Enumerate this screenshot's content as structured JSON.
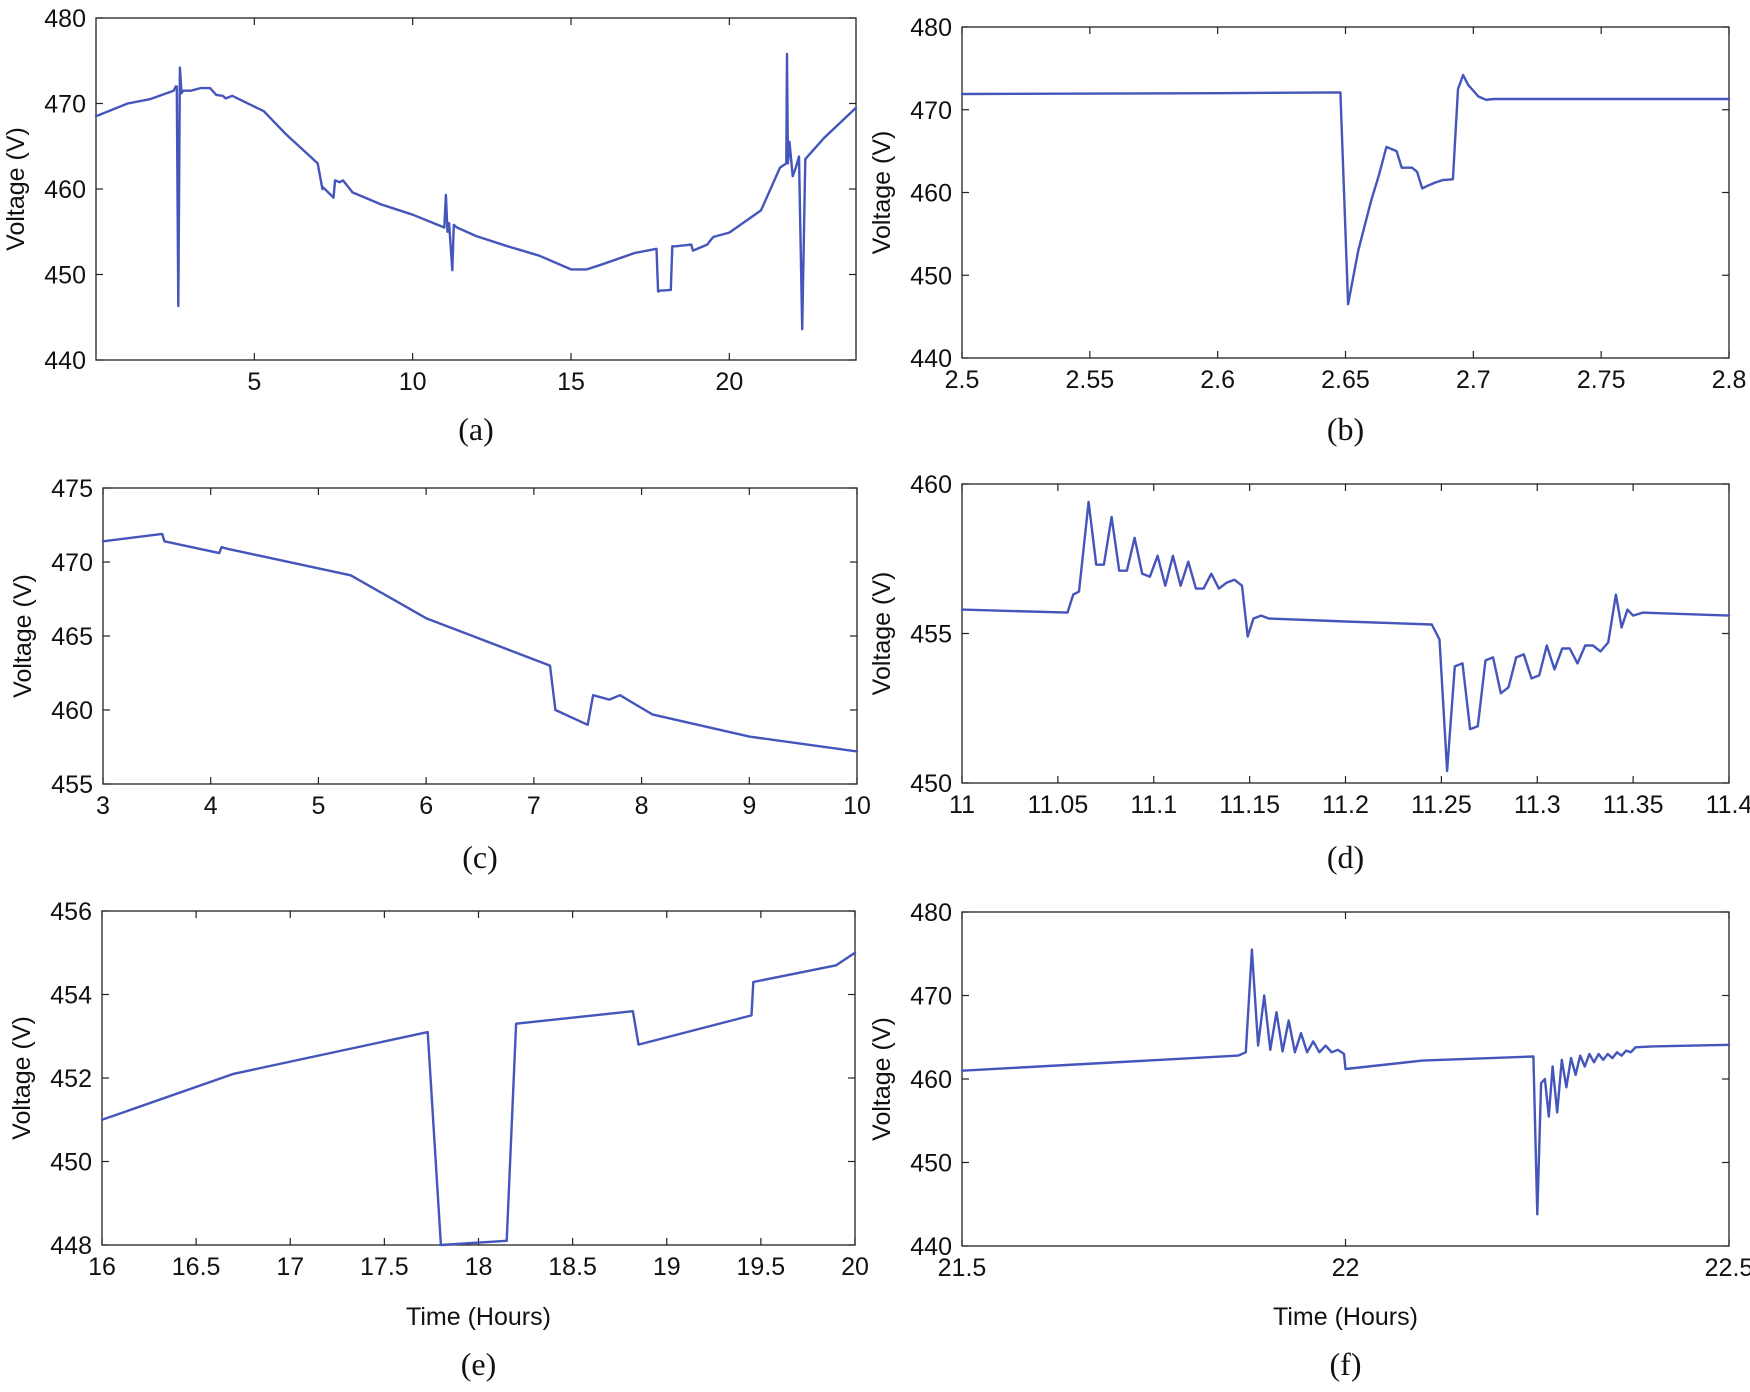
{
  "line_color": "#4455bb",
  "chart_data": [
    {
      "id": "a",
      "type": "line",
      "panel_label": "(a)",
      "xlabel": "",
      "ylabel": "Voltage (V)",
      "xlim": [
        0,
        24
      ],
      "ylim": [
        440,
        480
      ],
      "xticks": [
        5,
        10,
        15,
        20
      ],
      "xtick_labels": [
        "5",
        "10",
        "15",
        "20"
      ],
      "yticks": [
        440,
        450,
        460,
        470,
        480
      ],
      "ytick_labels": [
        "440",
        "450",
        "460",
        "470",
        "480"
      ],
      "series": [
        {
          "name": "Voltage",
          "x": [
            0,
            1,
            1.7,
            2.45,
            2.52,
            2.55,
            2.6,
            2.65,
            2.7,
            2.75,
            2.8,
            3,
            3.3,
            3.6,
            3.8,
            4,
            4.1,
            4.3,
            5.3,
            6,
            7,
            7.15,
            7.17,
            7.5,
            7.55,
            7.7,
            7.8,
            8.1,
            9,
            10,
            11,
            11.05,
            11.1,
            11.15,
            11.25,
            11.3,
            11.4,
            12,
            13,
            14,
            15,
            15.5,
            16,
            17,
            17.7,
            17.75,
            17.8,
            18.15,
            18.2,
            18.3,
            18.8,
            18.85,
            19.3,
            19.45,
            19.5,
            20,
            21,
            21.6,
            21.8,
            21.82,
            21.85,
            21.9,
            22,
            22.1,
            22.2,
            22.3,
            22.4,
            23,
            24
          ],
          "y": [
            468.5,
            470,
            470.5,
            471.5,
            472,
            472,
            446.3,
            474.2,
            471.2,
            471.5,
            471.5,
            471.5,
            471.8,
            471.8,
            471,
            470.9,
            470.6,
            470.9,
            469.1,
            466.4,
            463,
            460,
            460.2,
            459,
            461,
            460.8,
            461,
            459.6,
            458.2,
            457,
            455.5,
            459.3,
            455,
            456,
            450.5,
            455.8,
            455.5,
            454.5,
            453.3,
            452.2,
            450.6,
            450.6,
            451.2,
            452.5,
            453,
            448,
            448.1,
            448.2,
            453.3,
            453.3,
            453.5,
            452.8,
            453.5,
            454.2,
            454.4,
            454.9,
            457.5,
            462.5,
            463,
            475.8,
            463,
            465.5,
            461.5,
            462.5,
            463.8,
            443.6,
            463.5,
            466,
            469.5
          ]
        }
      ]
    },
    {
      "id": "b",
      "type": "line",
      "panel_label": "(b)",
      "xlabel": "",
      "ylabel": "Voltage (V)",
      "xlim": [
        2.5,
        2.8
      ],
      "ylim": [
        440,
        480
      ],
      "xticks": [
        2.5,
        2.55,
        2.6,
        2.65,
        2.7,
        2.75,
        2.8
      ],
      "xtick_labels": [
        "2.5",
        "2.55",
        "2.6",
        "2.65",
        "2.7",
        "2.75",
        "2.8"
      ],
      "yticks": [
        440,
        450,
        460,
        470,
        480
      ],
      "ytick_labels": [
        "440",
        "450",
        "460",
        "470",
        "480"
      ],
      "series": [
        {
          "name": "Voltage",
          "x": [
            2.5,
            2.6,
            2.648,
            2.651,
            2.655,
            2.66,
            2.663,
            2.666,
            2.67,
            2.672,
            2.676,
            2.678,
            2.68,
            2.682,
            2.685,
            2.688,
            2.692,
            2.694,
            2.696,
            2.698,
            2.702,
            2.705,
            2.708,
            2.75,
            2.8
          ],
          "y": [
            471.9,
            472,
            472.1,
            446.5,
            453,
            459,
            462,
            465.5,
            465,
            463,
            463,
            462.5,
            460.5,
            460.8,
            461.2,
            461.5,
            461.6,
            472.5,
            474.2,
            473,
            471.6,
            471.2,
            471.3,
            471.3,
            471.3
          ]
        }
      ]
    },
    {
      "id": "c",
      "type": "line",
      "panel_label": "(c)",
      "xlabel": "",
      "ylabel": "Voltage (V)",
      "xlim": [
        3,
        10
      ],
      "ylim": [
        455,
        475
      ],
      "xticks": [
        3,
        4,
        5,
        6,
        7,
        8,
        9,
        10
      ],
      "xtick_labels": [
        "3",
        "4",
        "5",
        "6",
        "7",
        "8",
        "9",
        "10"
      ],
      "yticks": [
        455,
        460,
        465,
        470,
        475
      ],
      "ytick_labels": [
        "455",
        "460",
        "465",
        "470",
        "475"
      ],
      "series": [
        {
          "name": "Voltage",
          "x": [
            3,
            3.55,
            3.57,
            4.08,
            4.1,
            4.15,
            5.3,
            6,
            7.15,
            7.2,
            7.5,
            7.55,
            7.7,
            7.8,
            8.1,
            9,
            10
          ],
          "y": [
            471.4,
            471.9,
            471.4,
            470.6,
            471,
            470.9,
            469.1,
            466.2,
            463,
            460,
            459,
            461,
            460.7,
            461,
            459.7,
            458.2,
            457.2
          ]
        }
      ]
    },
    {
      "id": "d",
      "type": "line",
      "panel_label": "(d)",
      "xlabel": "",
      "ylabel": "Voltage (V)",
      "xlim": [
        11,
        11.4
      ],
      "ylim": [
        450,
        460
      ],
      "xticks": [
        11,
        11.05,
        11.1,
        11.15,
        11.2,
        11.25,
        11.3,
        11.35,
        11.4
      ],
      "xtick_labels": [
        "11",
        "11.05",
        "11.1",
        "11.15",
        "11.2",
        "11.25",
        "11.3",
        "11.35",
        "11.4"
      ],
      "yticks": [
        450,
        455,
        460
      ],
      "ytick_labels": [
        "450",
        "455",
        "460"
      ],
      "series": [
        {
          "name": "Voltage",
          "x": [
            11,
            11.055,
            11.058,
            11.061,
            11.066,
            11.07,
            11.074,
            11.078,
            11.082,
            11.086,
            11.09,
            11.094,
            11.098,
            11.102,
            11.106,
            11.11,
            11.114,
            11.118,
            11.122,
            11.126,
            11.13,
            11.134,
            11.138,
            11.142,
            11.146,
            11.149,
            11.152,
            11.156,
            11.16,
            11.2,
            11.245,
            11.249,
            11.253,
            11.257,
            11.261,
            11.265,
            11.269,
            11.273,
            11.277,
            11.281,
            11.285,
            11.289,
            11.293,
            11.297,
            11.301,
            11.305,
            11.309,
            11.313,
            11.317,
            11.321,
            11.325,
            11.329,
            11.333,
            11.337,
            11.341,
            11.344,
            11.347,
            11.35,
            11.355,
            11.4
          ],
          "y": [
            455.8,
            455.7,
            456.3,
            456.4,
            459.4,
            457.3,
            457.3,
            458.9,
            457.1,
            457.1,
            458.2,
            457.0,
            456.9,
            457.6,
            456.6,
            457.6,
            456.6,
            457.4,
            456.5,
            456.5,
            457.0,
            456.5,
            456.7,
            456.8,
            456.6,
            454.9,
            455.5,
            455.6,
            455.5,
            455.4,
            455.3,
            454.8,
            450.4,
            453.9,
            454.0,
            451.8,
            451.9,
            454.1,
            454.2,
            453.0,
            453.2,
            454.2,
            454.3,
            453.5,
            453.6,
            454.6,
            453.8,
            454.5,
            454.5,
            454.0,
            454.6,
            454.6,
            454.4,
            454.7,
            456.3,
            455.2,
            455.8,
            455.6,
            455.7,
            455.6
          ]
        }
      ]
    },
    {
      "id": "e",
      "type": "line",
      "panel_label": "(e)",
      "xlabel": "Time (Hours)",
      "ylabel": "Voltage (V)",
      "xlim": [
        16,
        20
      ],
      "ylim": [
        448,
        456
      ],
      "xticks": [
        16,
        16.5,
        17,
        17.5,
        18,
        18.5,
        19,
        19.5,
        20
      ],
      "xtick_labels": [
        "16",
        "16.5",
        "17",
        "17.5",
        "18",
        "18.5",
        "19",
        "19.5",
        "20"
      ],
      "yticks": [
        448,
        450,
        452,
        454,
        456
      ],
      "ytick_labels": [
        "448",
        "450",
        "452",
        "454",
        "456"
      ],
      "series": [
        {
          "name": "Voltage",
          "x": [
            16,
            16.7,
            17.73,
            17.8,
            18.15,
            18.2,
            18.82,
            18.85,
            19.45,
            19.46,
            19.9,
            20
          ],
          "y": [
            451,
            452.1,
            453.1,
            448,
            448.1,
            453.3,
            453.6,
            452.8,
            453.5,
            454.3,
            454.7,
            455
          ]
        }
      ]
    },
    {
      "id": "f",
      "type": "line",
      "panel_label": "(f)",
      "xlabel": "Time (Hours)",
      "ylabel": "Voltage (V)",
      "xlim": [
        21.5,
        22.5
      ],
      "ylim": [
        440,
        480
      ],
      "xticks": [
        21.5,
        22,
        22.5
      ],
      "xtick_labels": [
        "21.5",
        "22",
        "22.5"
      ],
      "yticks": [
        440,
        450,
        460,
        470,
        480
      ],
      "ytick_labels": [
        "440",
        "450",
        "460",
        "470",
        "480"
      ],
      "series": [
        {
          "name": "Voltage",
          "x": [
            21.5,
            21.86,
            21.87,
            21.878,
            21.886,
            21.894,
            21.902,
            21.91,
            21.918,
            21.926,
            21.934,
            21.942,
            21.95,
            21.958,
            21.966,
            21.974,
            21.982,
            21.99,
            21.998,
            22.0,
            22.1,
            22.245,
            22.25,
            22.255,
            22.26,
            22.265,
            22.27,
            22.276,
            22.282,
            22.288,
            22.294,
            22.3,
            22.306,
            22.312,
            22.318,
            22.324,
            22.33,
            22.336,
            22.342,
            22.348,
            22.354,
            22.36,
            22.366,
            22.372,
            22.378,
            22.4,
            22.5
          ],
          "y": [
            461,
            462.8,
            463.2,
            475.5,
            464,
            470,
            463.5,
            468,
            463.3,
            467,
            463.2,
            465.5,
            463.2,
            464.5,
            463.2,
            464,
            463.2,
            463.5,
            463,
            461.2,
            462.2,
            462.7,
            443.8,
            459.5,
            460,
            455.5,
            461.5,
            456,
            462.3,
            459,
            462.5,
            460.5,
            462.8,
            461.5,
            463,
            462,
            463,
            462.3,
            463,
            462.5,
            463.2,
            462.8,
            463.4,
            463.2,
            463.8,
            463.9,
            464.1
          ]
        }
      ]
    }
  ]
}
